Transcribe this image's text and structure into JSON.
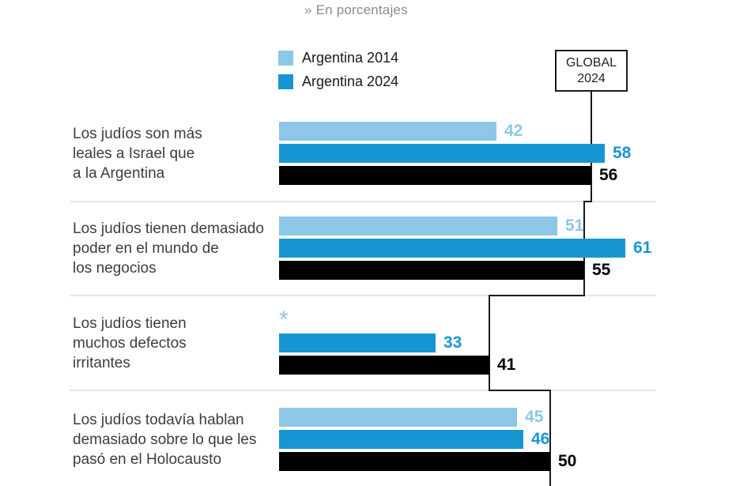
{
  "title": "» En porcentajes",
  "legend": [
    {
      "label": "Argentina 2014",
      "color": "#8CC7E8"
    },
    {
      "label": "Argentina 2024",
      "color": "#1697D4"
    }
  ],
  "global_box": {
    "line1": "GLOBAL",
    "line2": "2024"
  },
  "no_data_symbol": "*",
  "chart_data": {
    "type": "bar",
    "orientation": "horizontal",
    "unit": "percent",
    "title": "» En porcentajes",
    "legend_position": "top",
    "grid": "between-groups",
    "series_names": [
      "Argentina 2014",
      "Argentina 2024",
      "Global 2024"
    ],
    "series_keys": [
      "argentina_2014",
      "argentina_2024",
      "global_2024"
    ],
    "colors": {
      "argentina_2014": "#8CC7E8",
      "argentina_2024": "#1697D4",
      "global_2024": "#000000",
      "global_line": "#1a1a1a",
      "gridline": "#dddddd"
    },
    "groups": [
      {
        "label_lines": [
          "Los judíos son más",
          "leales a Israel que",
          "a la Argentina"
        ],
        "values": {
          "argentina_2014": 42,
          "argentina_2024": 58,
          "global_2024": 56
        }
      },
      {
        "label_lines": [
          "Los judíos tienen demasiado",
          "poder en el mundo de",
          "los negocios"
        ],
        "values": {
          "argentina_2014": 51,
          "argentina_2024": 61,
          "global_2024": 55
        }
      },
      {
        "label_lines": [
          "Los judíos tienen",
          "muchos defectos",
          "irritantes"
        ],
        "values": {
          "argentina_2014": null,
          "argentina_2024": 33,
          "global_2024": 41
        },
        "note": "no 2014 data, shown as *"
      },
      {
        "label_lines": [
          "Los judíos todavía hablan",
          "demasiado sobre lo que les",
          "pasó en el Holocausto"
        ],
        "values": {
          "argentina_2014": 45,
          "argentina_2024": 46,
          "global_2024": 50
        }
      }
    ]
  }
}
